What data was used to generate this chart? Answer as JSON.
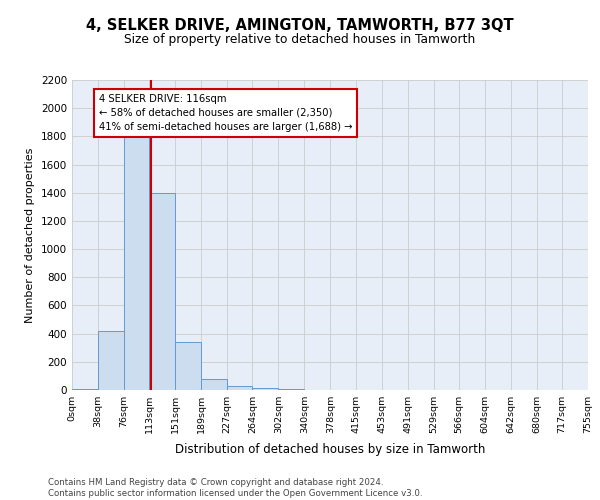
{
  "title": "4, SELKER DRIVE, AMINGTON, TAMWORTH, B77 3QT",
  "subtitle": "Size of property relative to detached houses in Tamworth",
  "xlabel": "Distribution of detached houses by size in Tamworth",
  "ylabel": "Number of detached properties",
  "bin_edges": [
    0,
    38,
    76,
    113,
    151,
    189,
    227,
    264,
    302,
    340,
    378,
    415,
    453,
    491,
    529,
    566,
    604,
    642,
    680,
    717,
    755
  ],
  "bin_labels": [
    "0sqm",
    "38sqm",
    "76sqm",
    "113sqm",
    "151sqm",
    "189sqm",
    "227sqm",
    "264sqm",
    "302sqm",
    "340sqm",
    "378sqm",
    "415sqm",
    "453sqm",
    "491sqm",
    "529sqm",
    "566sqm",
    "604sqm",
    "642sqm",
    "680sqm",
    "717sqm",
    "755sqm"
  ],
  "bar_heights": [
    10,
    420,
    1900,
    1400,
    340,
    80,
    25,
    15,
    5,
    2,
    1,
    0,
    0,
    0,
    0,
    0,
    0,
    0,
    0,
    0
  ],
  "bar_color": "#ccddef",
  "bar_edge_color": "#6699cc",
  "grid_color": "#cccccc",
  "property_sqm": 116,
  "vline_color": "#cc0000",
  "annotation_text": "4 SELKER DRIVE: 116sqm\n← 58% of detached houses are smaller (2,350)\n41% of semi-detached houses are larger (1,688) →",
  "annotation_box_color": "white",
  "annotation_box_edge_color": "#cc0000",
  "ylim_max": 2200,
  "yticks": [
    0,
    200,
    400,
    600,
    800,
    1000,
    1200,
    1400,
    1600,
    1800,
    2000,
    2200
  ],
  "footer_text": "Contains HM Land Registry data © Crown copyright and database right 2024.\nContains public sector information licensed under the Open Government Licence v3.0.",
  "bg_color": "#e8eef8"
}
